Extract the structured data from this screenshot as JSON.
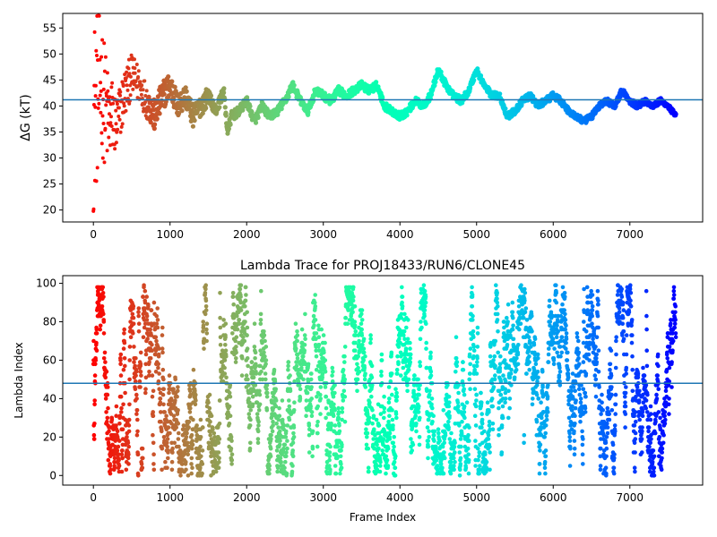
{
  "chart_data": [
    {
      "type": "scatter",
      "title": "",
      "xlabel": "",
      "ylabel": "ΔG (kT)",
      "xlim": [
        -400,
        7950
      ],
      "ylim": [
        17.7,
        57.8
      ],
      "xticks": [
        0,
        1000,
        2000,
        3000,
        4000,
        5000,
        6000,
        7000
      ],
      "yticks": [
        20,
        25,
        30,
        35,
        40,
        45,
        50,
        55
      ],
      "hline": 41.2,
      "hline_color": "#1f77b4",
      "colormap": "rainbow (red at frame 0 to violet at last frame)",
      "grid": false,
      "keypoints_frame": [
        0,
        50,
        100,
        150,
        200,
        250,
        300,
        400,
        500,
        600,
        700,
        800,
        900,
        1000,
        1100,
        1200,
        1300,
        1400,
        1500,
        1600,
        1700,
        1750,
        1800,
        1900,
        2000,
        2100,
        2200,
        2300,
        2400,
        2500,
        2600,
        2700,
        2800,
        2900,
        3000,
        3100,
        3200,
        3300,
        3400,
        3500,
        3600,
        3700,
        3800,
        3900,
        4000,
        4100,
        4200,
        4300,
        4400,
        4500,
        4600,
        4700,
        4800,
        4900,
        5000,
        5100,
        5200,
        5300,
        5400,
        5500,
        5600,
        5700,
        5800,
        5900,
        6000,
        6100,
        6200,
        6300,
        6400,
        6500,
        6600,
        6700,
        6800,
        6900,
        7000,
        7100,
        7200,
        7300,
        7400,
        7500,
        7600
      ],
      "keypoints_dG": [
        38,
        42,
        45,
        40,
        37,
        38,
        36,
        42,
        46,
        44,
        41,
        38,
        42,
        44,
        40,
        42,
        38,
        40,
        42,
        39,
        43,
        35,
        38,
        39,
        41,
        37,
        40,
        38,
        39,
        41,
        44,
        41,
        39,
        43,
        42,
        41,
        43,
        42,
        43,
        44,
        43,
        44,
        40,
        39,
        38,
        39,
        41,
        40,
        42,
        47,
        44,
        42,
        41,
        43,
        47,
        44,
        42,
        42,
        38,
        39,
        41,
        42,
        40,
        41,
        42,
        41,
        39,
        38,
        37,
        38,
        40,
        41,
        40,
        43,
        41,
        40,
        41,
        40,
        41,
        40,
        38
      ],
      "spread_envelope_frame": [
        0,
        100,
        200,
        300,
        500,
        800,
        1200,
        2000,
        7600
      ],
      "spread_envelope_kT": [
        19,
        14,
        9,
        6,
        4,
        3,
        2.2,
        1.4,
        0.9
      ]
    },
    {
      "type": "scatter",
      "title": "Lambda Trace for PROJ18433/RUN6/CLONE45",
      "xlabel": "Frame Index",
      "ylabel": "Lambda Index",
      "xlim": [
        -400,
        7950
      ],
      "ylim": [
        -5,
        104
      ],
      "xticks": [
        0,
        1000,
        2000,
        3000,
        4000,
        5000,
        6000,
        7000
      ],
      "yticks": [
        0,
        20,
        40,
        60,
        80,
        100
      ],
      "hline": 48,
      "hline_color": "#1f77b4",
      "colormap": "rainbow (red at frame 0 to violet at last frame)",
      "grid": false,
      "frame_count": 7600,
      "lambda_range": [
        0,
        99
      ]
    }
  ]
}
